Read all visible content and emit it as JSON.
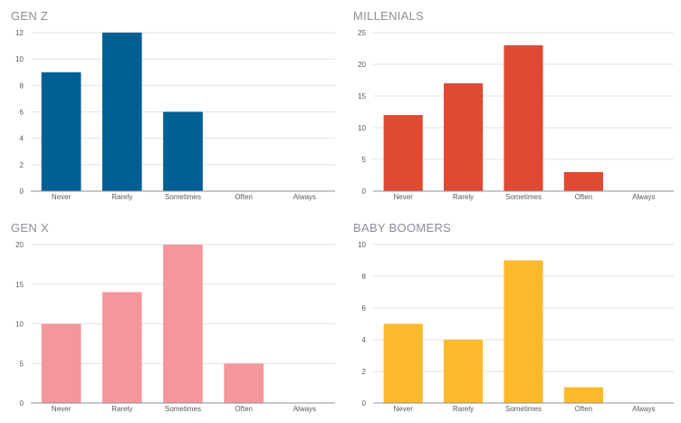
{
  "chart_data": [
    {
      "type": "bar",
      "title": "GEN Z",
      "categories": [
        "Never",
        "Rarely",
        "Sometimes",
        "Often",
        "Always"
      ],
      "values": [
        9,
        12,
        6,
        0,
        0
      ],
      "ylim": [
        0,
        12
      ],
      "yticks": [
        0,
        2,
        4,
        6,
        8,
        10,
        12
      ],
      "color": "#005f94",
      "grid": true
    },
    {
      "type": "bar",
      "title": "MILLENIALS",
      "categories": [
        "Never",
        "Rarely",
        "Sometimes",
        "Often",
        "Always"
      ],
      "values": [
        12,
        17,
        23,
        3,
        0
      ],
      "ylim": [
        0,
        25
      ],
      "yticks": [
        0,
        5,
        10,
        15,
        20,
        25
      ],
      "color": "#e04a34",
      "grid": true
    },
    {
      "type": "bar",
      "title": "GEN X",
      "categories": [
        "Never",
        "Rarely",
        "Sometimes",
        "Often",
        "Always"
      ],
      "values": [
        10,
        14,
        20,
        5,
        0
      ],
      "ylim": [
        0,
        20
      ],
      "yticks": [
        0,
        5,
        10,
        15,
        20
      ],
      "color": "#f4979d",
      "grid": true
    },
    {
      "type": "bar",
      "title": "BABY BOOMERS",
      "categories": [
        "Never",
        "Rarely",
        "Sometimes",
        "Often",
        "Always"
      ],
      "values": [
        5,
        4,
        9,
        1,
        0
      ],
      "ylim": [
        0,
        10
      ],
      "yticks": [
        0,
        2,
        4,
        6,
        8,
        10
      ],
      "color": "#fdb92c",
      "grid": true
    }
  ]
}
